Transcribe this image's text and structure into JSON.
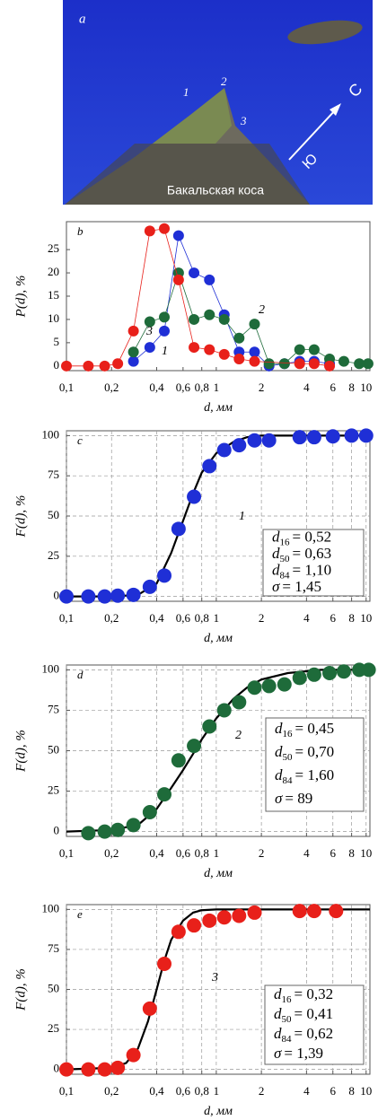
{
  "photo": {
    "label": "a",
    "numbers": [
      "1",
      "2",
      "3"
    ],
    "south": "Ю",
    "north": "С",
    "caption": "Бакальская коса"
  },
  "chart_data": [
    {
      "type": "line",
      "panel": "b",
      "y_label": "P(d), %",
      "x_label": "d, мм",
      "log_x": true,
      "grid": false,
      "xlim": [
        0.1,
        10.6
      ],
      "ylim": [
        -1,
        31
      ],
      "xticks": [
        {
          "value": 0.1,
          "label": "0,1"
        },
        {
          "value": 0.2,
          "label": "0,2"
        },
        {
          "value": 0.4,
          "label": "0,4"
        },
        {
          "value": 0.6,
          "label": "0,6"
        },
        {
          "value": 0.8,
          "label": "0,8"
        },
        1,
        2,
        4,
        6,
        8,
        10
      ],
      "yticks": [
        0,
        5,
        10,
        15,
        20,
        25
      ],
      "series": [
        {
          "name": "1",
          "color": "#1f2fd6",
          "x": [
            0.28,
            0.36,
            0.45,
            0.56,
            0.71,
            0.9,
            1.13,
            1.42,
            1.8,
            2.25,
            2.85,
            3.6,
            4.5,
            5.7
          ],
          "values": [
            1,
            4,
            7.5,
            28,
            20,
            18.5,
            11,
            3,
            3,
            0,
            0.5,
            1,
            1,
            0.5
          ]
        },
        {
          "name": "2",
          "color": "#1e6b3a",
          "x": [
            0.28,
            0.36,
            0.45,
            0.56,
            0.71,
            0.9,
            1.13,
            1.42,
            1.8,
            2.25,
            2.85,
            3.6,
            4.5,
            5.7,
            7.1,
            9,
            10.3
          ],
          "values": [
            3,
            9.5,
            10.5,
            20,
            10,
            11,
            10,
            6,
            9,
            0.5,
            0.5,
            3.5,
            3.5,
            1.5,
            1,
            0.5,
            0.5
          ]
        },
        {
          "name": "3",
          "color": "#e8201a",
          "x": [
            0.1,
            0.14,
            0.18,
            0.22,
            0.28,
            0.36,
            0.45,
            0.56,
            0.71,
            0.9,
            1.13,
            1.42,
            1.8,
            3.6,
            4.5,
            5.7
          ],
          "values": [
            0,
            0,
            0,
            0.5,
            7.5,
            29,
            29.5,
            18.5,
            4,
            3.5,
            2.5,
            1.5,
            1,
            0.5,
            0.5,
            0
          ]
        }
      ]
    },
    {
      "type": "scatter",
      "panel": "c",
      "y_label": "F(d), %",
      "x_label": "d, мм",
      "log_x": true,
      "grid": true,
      "xlim": [
        0.1,
        10.6
      ],
      "ylim": [
        -3,
        103
      ],
      "xticks": [
        {
          "value": 0.1,
          "label": "0,1"
        },
        {
          "value": 0.2,
          "label": "0,2"
        },
        {
          "value": 0.4,
          "label": "0,4"
        },
        {
          "value": 0.6,
          "label": "0,6"
        },
        {
          "value": 0.8,
          "label": "0,8"
        },
        1,
        2,
        4,
        6,
        8,
        10
      ],
      "yticks": [
        0,
        25,
        50,
        75,
        100
      ],
      "series": [
        {
          "name": "1",
          "color": "#1f2fd6",
          "x": [
            0.1,
            0.14,
            0.18,
            0.22,
            0.28,
            0.36,
            0.45,
            0.56,
            0.71,
            0.9,
            1.13,
            1.42,
            1.8,
            2.25,
            3.6,
            4.5,
            6,
            8,
            10
          ],
          "values": [
            0,
            0,
            0,
            0.5,
            1,
            6,
            13,
            42,
            62,
            81,
            91,
            94,
            97,
            97,
            99,
            99,
            99.5,
            100,
            100
          ]
        }
      ],
      "fit": {
        "color": "#000",
        "x": [
          0.1,
          0.2,
          0.3,
          0.4,
          0.5,
          0.6,
          0.7,
          0.8,
          1,
          1.3,
          1.6,
          2,
          3,
          10.6
        ],
        "values": [
          0,
          0,
          1,
          8,
          27,
          47,
          64,
          77,
          89,
          96,
          99,
          100,
          100,
          100
        ]
      },
      "stats": [
        {
          "symbol": "d",
          "sub": "16",
          "value": "= 0,52"
        },
        {
          "symbol": "d",
          "sub": "50",
          "value": "= 0,63"
        },
        {
          "symbol": "d",
          "sub": "84",
          "value": "= 1,10"
        },
        {
          "symbol": "σ",
          "value": "= 1,45"
        }
      ]
    },
    {
      "type": "scatter",
      "panel": "d",
      "y_label": "F(d), %",
      "x_label": "d, мм",
      "log_x": true,
      "grid": true,
      "xlim": [
        0.1,
        10.6
      ],
      "ylim": [
        -3,
        103
      ],
      "xticks": [
        {
          "value": 0.1,
          "label": "0,1"
        },
        {
          "value": 0.2,
          "label": "0,2"
        },
        {
          "value": 0.4,
          "label": "0,4"
        },
        {
          "value": 0.6,
          "label": "0,6"
        },
        {
          "value": 0.8,
          "label": "0,8"
        },
        1,
        2,
        4,
        6,
        8,
        10
      ],
      "yticks": [
        0,
        25,
        50,
        75,
        100
      ],
      "series": [
        {
          "name": "2",
          "color": "#1e6b3a",
          "x": [
            0.14,
            0.18,
            0.22,
            0.28,
            0.36,
            0.45,
            0.56,
            0.71,
            0.9,
            1.13,
            1.42,
            1.8,
            2.25,
            2.85,
            3.6,
            4.5,
            5.7,
            7.1,
            9,
            10.4
          ],
          "values": [
            -1,
            0,
            1,
            4,
            12,
            23,
            44,
            53,
            65,
            75,
            80,
            89,
            90,
            91,
            95,
            97,
            98,
            99,
            100,
            100
          ]
        }
      ],
      "fit": {
        "color": "#000",
        "x": [
          0.1,
          0.2,
          0.3,
          0.4,
          0.5,
          0.6,
          0.7,
          0.8,
          1,
          1.3,
          1.6,
          2,
          3,
          5,
          10.6
        ],
        "values": [
          0,
          1,
          4,
          14,
          27,
          38,
          48,
          57,
          70,
          82,
          89,
          94,
          98,
          100,
          100
        ]
      },
      "stats": [
        {
          "symbol": "d",
          "sub": "16",
          "value": "= 0,45"
        },
        {
          "symbol": "d",
          "sub": "50",
          "value": "= 0,70"
        },
        {
          "symbol": "d",
          "sub": "84",
          "value": "= 1,60"
        },
        {
          "symbol": "σ",
          "value": "= 89"
        }
      ]
    },
    {
      "type": "scatter",
      "panel": "e",
      "y_label": "F(d), %",
      "x_label": "d, мм",
      "log_x": true,
      "grid": true,
      "xlim": [
        0.1,
        10.6
      ],
      "ylim": [
        -3,
        103
      ],
      "xticks": [
        {
          "value": 0.1,
          "label": "0,1"
        },
        {
          "value": 0.2,
          "label": "0,2"
        },
        {
          "value": 0.4,
          "label": "0,4"
        },
        {
          "value": 0.6,
          "label": "0,6"
        },
        {
          "value": 0.8,
          "label": "0,8"
        },
        1,
        2,
        4,
        6,
        8,
        10
      ],
      "yticks": [
        0,
        25,
        50,
        75,
        100
      ],
      "series": [
        {
          "name": "3",
          "color": "#e8201a",
          "x": [
            0.1,
            0.14,
            0.18,
            0.22,
            0.28,
            0.36,
            0.45,
            0.56,
            0.71,
            0.9,
            1.13,
            1.42,
            1.8,
            3.6,
            4.5,
            6.3
          ],
          "values": [
            0,
            0,
            0,
            1,
            9,
            38,
            66,
            86,
            90,
            93,
            95,
            96,
            98,
            99,
            99,
            99
          ]
        }
      ],
      "fit": {
        "color": "#000",
        "x": [
          0.1,
          0.2,
          0.25,
          0.3,
          0.35,
          0.4,
          0.45,
          0.5,
          0.6,
          0.7,
          0.8,
          1,
          10.6
        ],
        "values": [
          0,
          1,
          4,
          13,
          30,
          50,
          68,
          81,
          93,
          98,
          99.5,
          100,
          100
        ]
      },
      "stats": [
        {
          "symbol": "d",
          "sub": "16",
          "value": "= 0,32"
        },
        {
          "symbol": "d",
          "sub": "50",
          "value": "= 0,41"
        },
        {
          "symbol": "d",
          "sub": "84",
          "value": "= 0,62"
        },
        {
          "symbol": "σ",
          "value": "= 1,39"
        }
      ]
    }
  ]
}
